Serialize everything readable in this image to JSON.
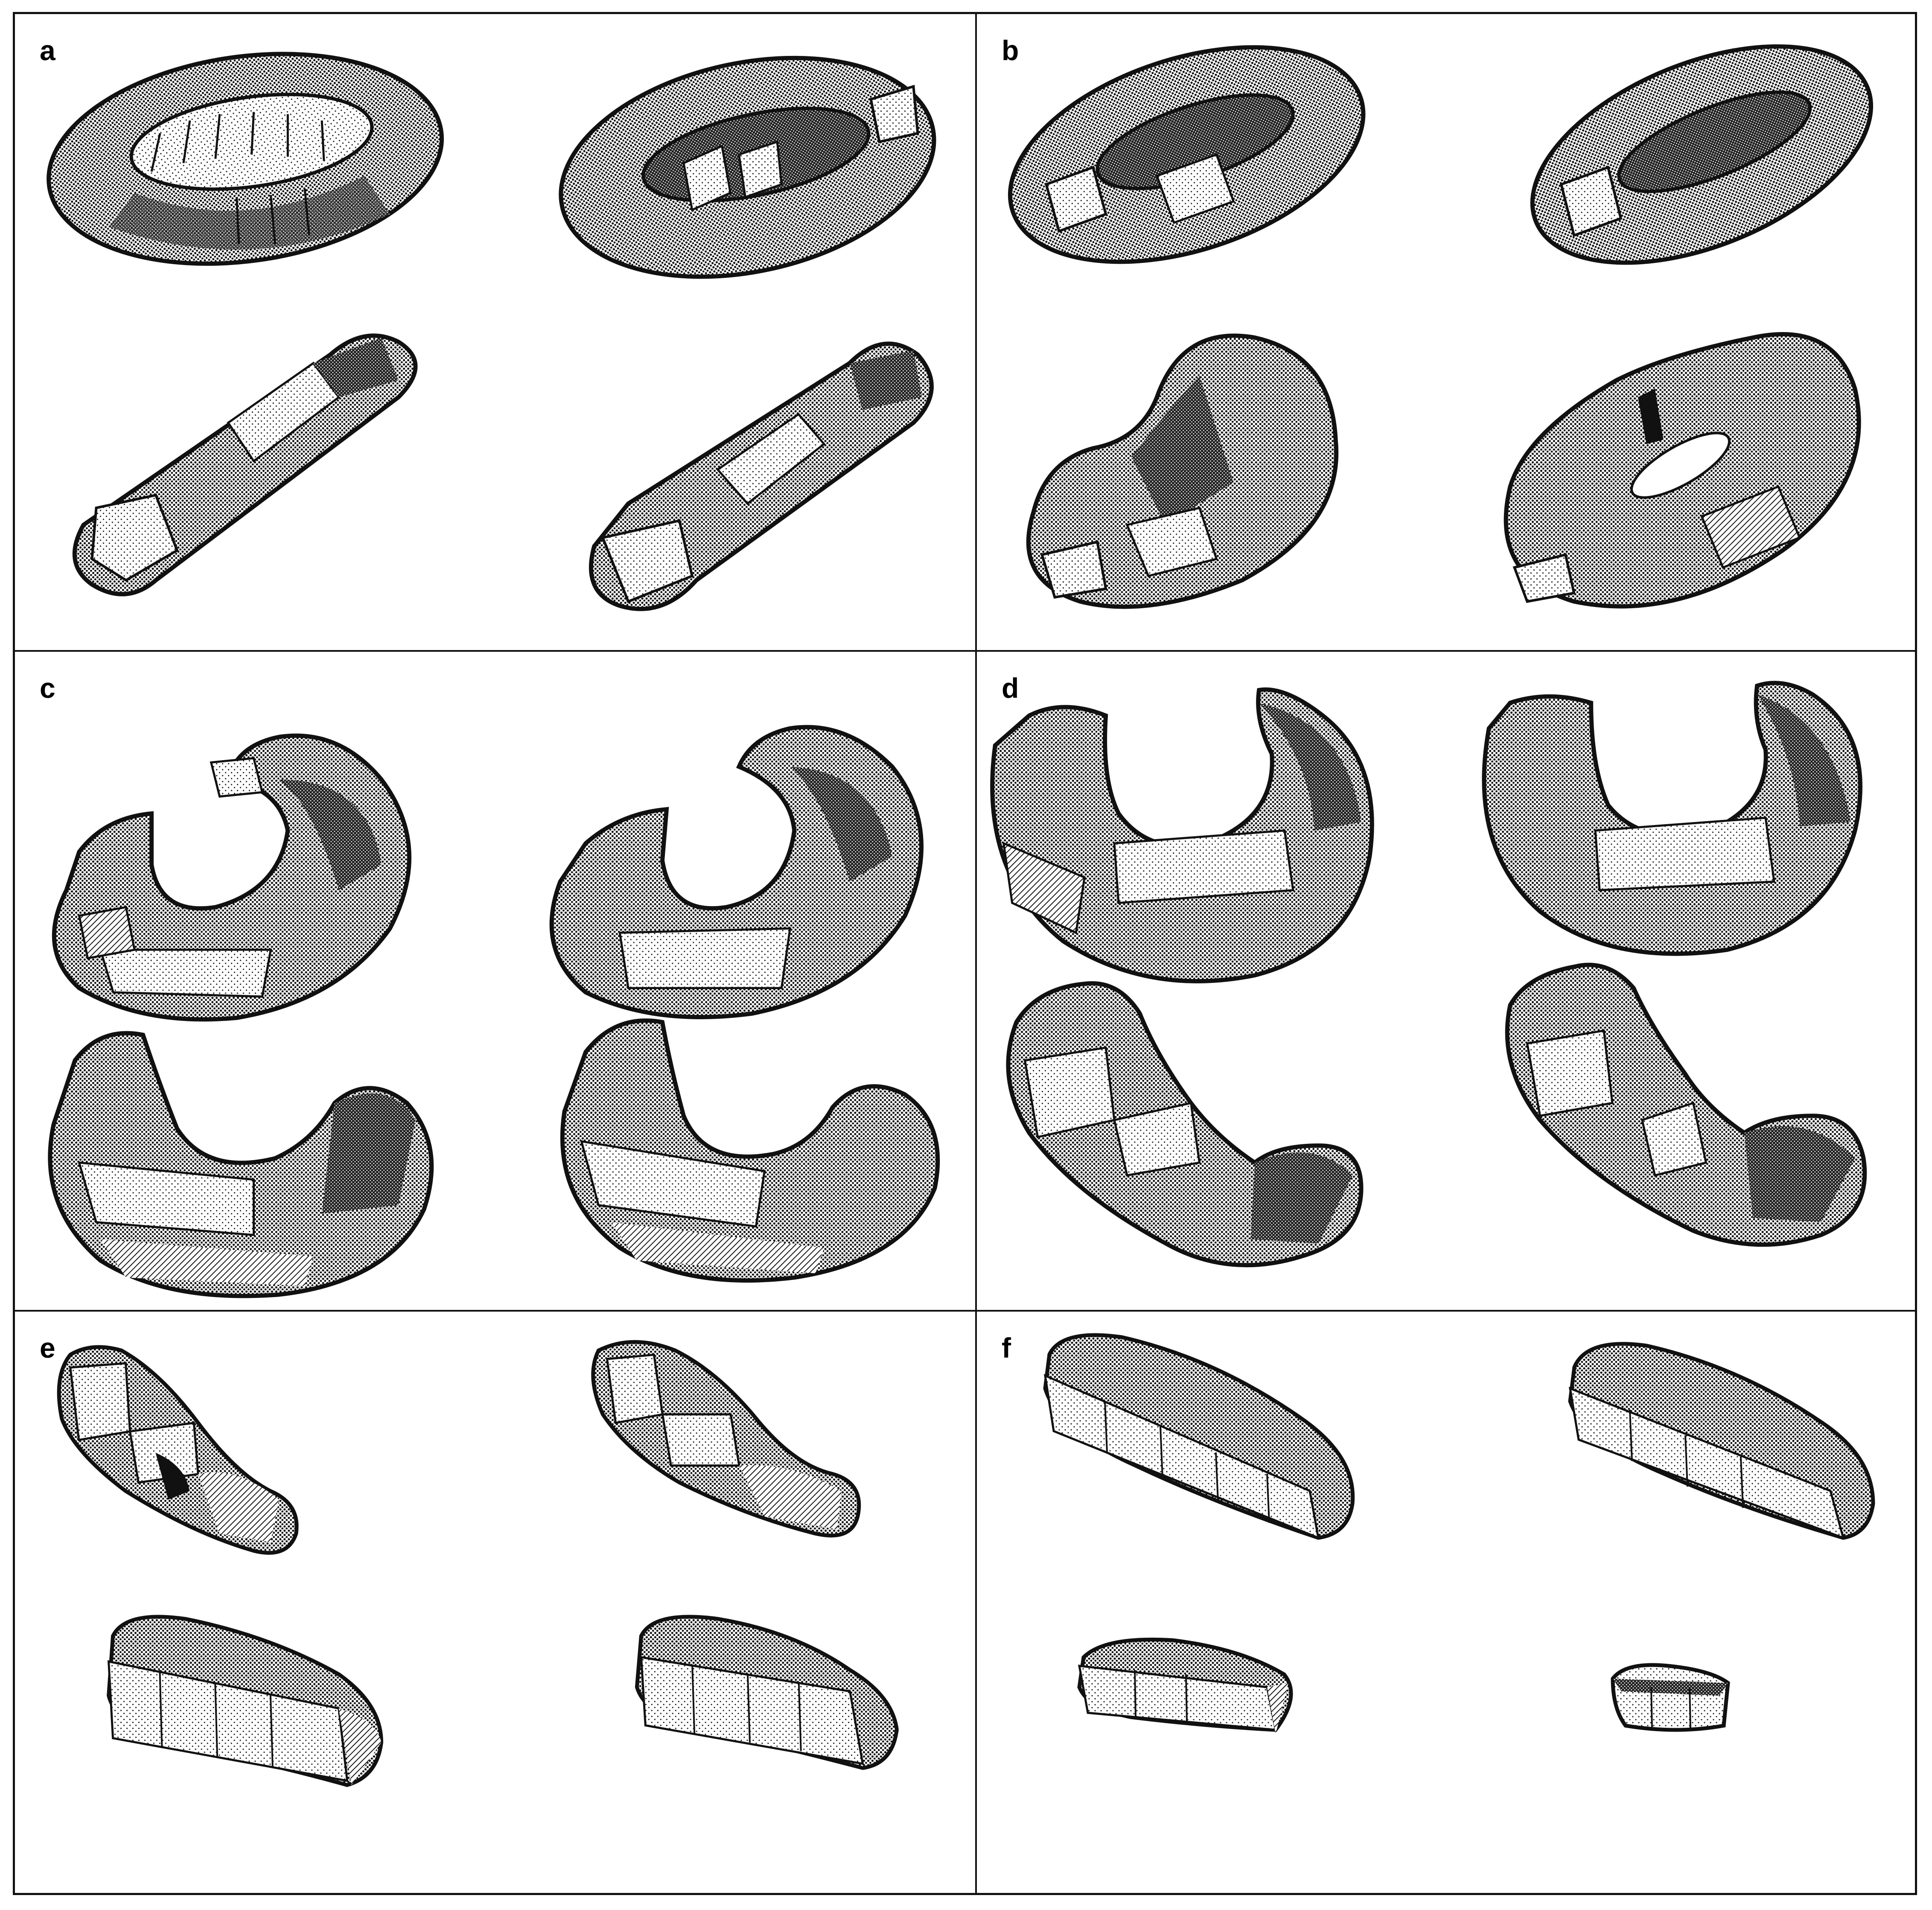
{
  "figure": {
    "panels": [
      {
        "label": "a",
        "description_hidden": true
      },
      {
        "label": "b"
      },
      {
        "label": "c"
      },
      {
        "label": "d"
      },
      {
        "label": "e"
      },
      {
        "label": "f"
      }
    ]
  },
  "colors": {
    "ink": "#111111",
    "dark": "#1a1a1a",
    "mid": "#6e6e6e",
    "light": "#e9e9e9",
    "paper": "#ffffff"
  }
}
